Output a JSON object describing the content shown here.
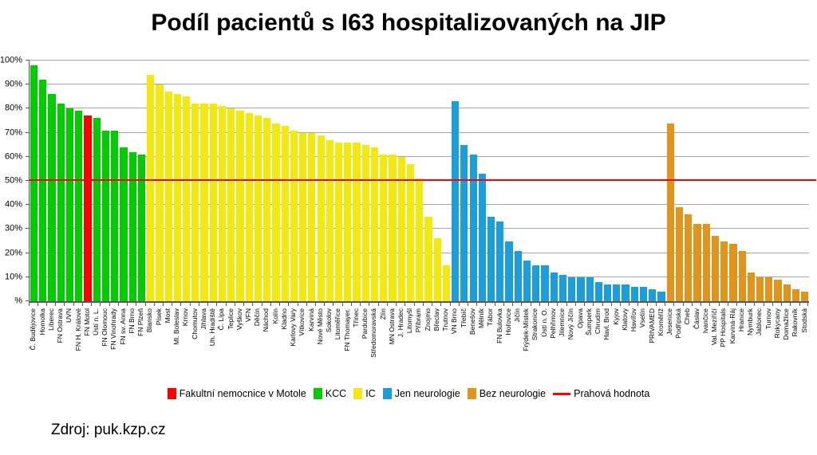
{
  "title": "Podíl pacientů s I63 hospitalizovaných na JIP",
  "source": "Zdroj: puk.kzp.cz",
  "legend": [
    {
      "label": "Fakultní nemocnice v Motole",
      "color": "#ff0000",
      "type": "box"
    },
    {
      "label": "KCC",
      "color": "#00cc00",
      "type": "box"
    },
    {
      "label": "IC",
      "color": "#f2ea0f",
      "type": "box"
    },
    {
      "label": "Jen neurologie",
      "color": "#1b9ed9",
      "type": "box"
    },
    {
      "label": "Bez neurologie",
      "color": "#e0941c",
      "type": "box"
    },
    {
      "label": "Prahová hodnota",
      "color": "#ff0000",
      "type": "line"
    }
  ],
  "chart_data": {
    "type": "bar",
    "title": "Podíl pacientů s I63 hospitalizovaných na JIP",
    "xlabel": "",
    "ylabel": "%",
    "ylim": [
      0,
      100
    ],
    "grid": true,
    "threshold_value": 50,
    "colors": {
      "motol": "#ff0000",
      "kcc": "#00cc00",
      "ic": "#f2ea0f",
      "neuro": "#1b9ed9",
      "bez": "#e0941c",
      "threshold": "#ff0000",
      "grid": "#a6a6a6",
      "axis": "#595959"
    },
    "yticks": [
      {
        "v": 100,
        "label": "100%"
      },
      {
        "v": 90,
        "label": "90%"
      },
      {
        "v": 80,
        "label": "80%"
      },
      {
        "v": 70,
        "label": "70%"
      },
      {
        "v": 60,
        "label": "60%"
      },
      {
        "v": 50,
        "label": "50%"
      },
      {
        "v": 40,
        "label": "40%"
      },
      {
        "v": 30,
        "label": "30%"
      },
      {
        "v": 20,
        "label": "20%"
      },
      {
        "v": 10,
        "label": "10%"
      },
      {
        "v": 0,
        "label": "%"
      }
    ],
    "bars": [
      {
        "name": "Č. Budějovice",
        "value": 98,
        "group": "kcc"
      },
      {
        "name": "Homolka",
        "value": 92,
        "group": "kcc"
      },
      {
        "name": "Liberec",
        "value": 86,
        "group": "kcc"
      },
      {
        "name": "FN Ostrava",
        "value": 82,
        "group": "kcc"
      },
      {
        "name": "UVN",
        "value": 80,
        "group": "kcc"
      },
      {
        "name": "FN H. Králové",
        "value": 79,
        "group": "kcc"
      },
      {
        "name": "FN Motol",
        "value": 77,
        "group": "motol"
      },
      {
        "name": "Ústí n. L.",
        "value": 76,
        "group": "kcc"
      },
      {
        "name": "FN Olomouc",
        "value": 71,
        "group": "kcc"
      },
      {
        "name": "FN Vinohrady",
        "value": 71,
        "group": "kcc"
      },
      {
        "name": "FN sv. Anna",
        "value": 64,
        "group": "kcc"
      },
      {
        "name": "FN Brno",
        "value": 62,
        "group": "kcc"
      },
      {
        "name": "FN Plzeň",
        "value": 61,
        "group": "kcc"
      },
      {
        "name": "Blansko",
        "value": 94,
        "group": "ic"
      },
      {
        "name": "Písek",
        "value": 90,
        "group": "ic"
      },
      {
        "name": "Most",
        "value": 87,
        "group": "ic"
      },
      {
        "name": "Ml. Boleslav",
        "value": 86,
        "group": "ic"
      },
      {
        "name": "Krnov",
        "value": 85,
        "group": "ic"
      },
      {
        "name": "Chomutov",
        "value": 82,
        "group": "ic"
      },
      {
        "name": "Jihlava",
        "value": 82,
        "group": "ic"
      },
      {
        "name": "Uh. Hradiště",
        "value": 82,
        "group": "ic"
      },
      {
        "name": "Č. Lípa",
        "value": 81,
        "group": "ic"
      },
      {
        "name": "Teplice",
        "value": 80,
        "group": "ic"
      },
      {
        "name": "Vyškov",
        "value": 79,
        "group": "ic"
      },
      {
        "name": "VFN",
        "value": 78,
        "group": "ic"
      },
      {
        "name": "Děčín",
        "value": 77,
        "group": "ic"
      },
      {
        "name": "Náchod",
        "value": 76,
        "group": "ic"
      },
      {
        "name": "Kolín",
        "value": 74,
        "group": "ic"
      },
      {
        "name": "Kladno",
        "value": 73,
        "group": "ic"
      },
      {
        "name": "Karlovy Vary",
        "value": 71,
        "group": "ic"
      },
      {
        "name": "Vítkovice",
        "value": 70,
        "group": "ic"
      },
      {
        "name": "Karviná",
        "value": 70,
        "group": "ic"
      },
      {
        "name": "Nové Město",
        "value": 69,
        "group": "ic"
      },
      {
        "name": "Sokolov",
        "value": 67,
        "group": "ic"
      },
      {
        "name": "Litoměřice",
        "value": 66,
        "group": "ic"
      },
      {
        "name": "FN Thomayer.",
        "value": 66,
        "group": "ic"
      },
      {
        "name": "Třinec",
        "value": 66,
        "group": "ic"
      },
      {
        "name": "Pardubice",
        "value": 65,
        "group": "ic"
      },
      {
        "name": "Středomoravská",
        "value": 64,
        "group": "ic"
      },
      {
        "name": "Zlín",
        "value": 61,
        "group": "ic"
      },
      {
        "name": "MN Ostrava",
        "value": 61,
        "group": "ic"
      },
      {
        "name": "J. Hradec",
        "value": 60,
        "group": "ic"
      },
      {
        "name": "Litomyšl",
        "value": 57,
        "group": "ic"
      },
      {
        "name": "Příbram",
        "value": 51,
        "group": "ic"
      },
      {
        "name": "Znojmo",
        "value": 35,
        "group": "ic"
      },
      {
        "name": "Břeclav",
        "value": 26,
        "group": "ic"
      },
      {
        "name": "Trutnov",
        "value": 15,
        "group": "ic"
      },
      {
        "name": "VN Brno",
        "value": 83,
        "group": "neuro"
      },
      {
        "name": "Třebíč",
        "value": 65,
        "group": "neuro"
      },
      {
        "name": "Benešov",
        "value": 61,
        "group": "neuro"
      },
      {
        "name": "Mělník",
        "value": 53,
        "group": "neuro"
      },
      {
        "name": "Tábor",
        "value": 35,
        "group": "neuro"
      },
      {
        "name": "FN Bulovka",
        "value": 33,
        "group": "neuro"
      },
      {
        "name": "Hořovice",
        "value": 25,
        "group": "neuro"
      },
      {
        "name": "Jičín",
        "value": 21,
        "group": "neuro"
      },
      {
        "name": "Frýdek-Místek",
        "value": 17,
        "group": "neuro"
      },
      {
        "name": "Strakonice",
        "value": 15,
        "group": "neuro"
      },
      {
        "name": "Ústí n. O.",
        "value": 15,
        "group": "neuro"
      },
      {
        "name": "Pelhřimov",
        "value": 12,
        "group": "neuro"
      },
      {
        "name": "Jilemnice",
        "value": 11,
        "group": "neuro"
      },
      {
        "name": "Nový Jičín",
        "value": 10,
        "group": "neuro"
      },
      {
        "name": "Opava",
        "value": 10,
        "group": "neuro"
      },
      {
        "name": "Šumperk",
        "value": 10,
        "group": "neuro"
      },
      {
        "name": "Chrudim",
        "value": 8,
        "group": "neuro"
      },
      {
        "name": "Havl. Brod",
        "value": 7,
        "group": "neuro"
      },
      {
        "name": "Kyjov",
        "value": 7,
        "group": "neuro"
      },
      {
        "name": "Klatovy",
        "value": 7,
        "group": "neuro"
      },
      {
        "name": "Havířov",
        "value": 6,
        "group": "neuro"
      },
      {
        "name": "Vsetín",
        "value": 6,
        "group": "neuro"
      },
      {
        "name": "PRIVAMED",
        "value": 5,
        "group": "neuro"
      },
      {
        "name": "Kroměříž",
        "value": 4,
        "group": "neuro"
      },
      {
        "name": "Jesenice",
        "value": 74,
        "group": "bez"
      },
      {
        "name": "Podřipská",
        "value": 39,
        "group": "bez"
      },
      {
        "name": "Cheb",
        "value": 36,
        "group": "bez"
      },
      {
        "name": "Čáslav",
        "value": 32,
        "group": "bez"
      },
      {
        "name": "Ivančice",
        "value": 32,
        "group": "bez"
      },
      {
        "name": "Val. Meziříčí",
        "value": 27,
        "group": "bez"
      },
      {
        "name": "PP Hospitals",
        "value": 25,
        "group": "bez"
      },
      {
        "name": "Karviná-Ráj",
        "value": 24,
        "group": "bez"
      },
      {
        "name": "Hranice",
        "value": 21,
        "group": "bez"
      },
      {
        "name": "Nymburk",
        "value": 12,
        "group": "bez"
      },
      {
        "name": "Jablonec",
        "value": 10,
        "group": "bez"
      },
      {
        "name": "Turnov",
        "value": 10,
        "group": "bez"
      },
      {
        "name": "Rokycany",
        "value": 9,
        "group": "bez"
      },
      {
        "name": "Domažlice",
        "value": 7,
        "group": "bez"
      },
      {
        "name": "Rakovník",
        "value": 5,
        "group": "bez"
      },
      {
        "name": "Stodská",
        "value": 4,
        "group": "bez"
      }
    ]
  }
}
